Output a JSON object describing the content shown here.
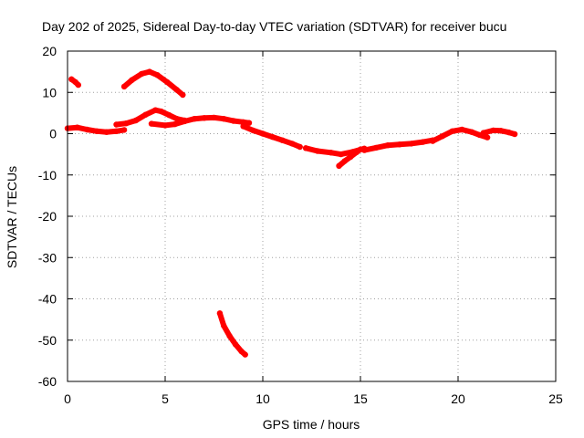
{
  "chart_data": {
    "type": "scatter",
    "title": "Day 202 of 2025, Sidereal Day-to-day VTEC variation (SDTVAR) for receiver bucu",
    "xlabel": "GPS time / hours",
    "ylabel": "SDTVAR / TECUs",
    "xlim": [
      0,
      25
    ],
    "ylim": [
      -60,
      20
    ],
    "xticks": [
      0,
      5,
      10,
      15,
      20,
      25
    ],
    "yticks": [
      -60,
      -50,
      -40,
      -30,
      -20,
      -10,
      0,
      10,
      20
    ],
    "grid": true,
    "series_color": "#ff0000",
    "series": [
      {
        "name": "arc-early-high",
        "points": [
          [
            0.2,
            13.2
          ],
          [
            0.4,
            12.5
          ],
          [
            0.55,
            11.8
          ]
        ]
      },
      {
        "name": "arc-hump",
        "points": [
          [
            2.9,
            11.4
          ],
          [
            3.3,
            13.0
          ],
          [
            3.8,
            14.5
          ],
          [
            4.2,
            15.0
          ],
          [
            4.6,
            14.2
          ],
          [
            5.1,
            12.5
          ],
          [
            5.6,
            10.6
          ],
          [
            5.9,
            9.4
          ]
        ]
      },
      {
        "name": "arc-baseline-left",
        "points": [
          [
            0.0,
            1.3
          ],
          [
            0.5,
            1.5
          ],
          [
            1.0,
            1.0
          ],
          [
            1.5,
            0.6
          ],
          [
            2.0,
            0.4
          ],
          [
            2.5,
            0.6
          ],
          [
            2.9,
            0.9
          ]
        ]
      },
      {
        "name": "arc-rise-mid",
        "points": [
          [
            2.5,
            2.2
          ],
          [
            3.0,
            2.5
          ],
          [
            3.5,
            3.2
          ],
          [
            4.0,
            4.6
          ],
          [
            4.5,
            5.7
          ],
          [
            4.8,
            5.4
          ],
          [
            5.2,
            4.5
          ],
          [
            5.6,
            3.6
          ],
          [
            6.0,
            3.2
          ]
        ]
      },
      {
        "name": "arc-mid-block",
        "points": [
          [
            4.3,
            2.4
          ],
          [
            5.0,
            2.0
          ],
          [
            5.5,
            2.3
          ],
          [
            6.0,
            3.0
          ],
          [
            6.5,
            3.6
          ],
          [
            7.0,
            3.8
          ],
          [
            7.5,
            3.9
          ],
          [
            8.0,
            3.6
          ],
          [
            8.5,
            3.1
          ],
          [
            9.0,
            2.8
          ],
          [
            9.3,
            2.6
          ]
        ]
      },
      {
        "name": "arc-decline",
        "points": [
          [
            9.0,
            1.8
          ],
          [
            9.5,
            0.8
          ],
          [
            10.0,
            0.0
          ],
          [
            10.5,
            -0.8
          ],
          [
            11.0,
            -1.6
          ],
          [
            11.5,
            -2.4
          ],
          [
            11.9,
            -3.2
          ]
        ]
      },
      {
        "name": "arc-trough",
        "points": [
          [
            12.2,
            -3.5
          ],
          [
            12.8,
            -4.2
          ],
          [
            13.5,
            -4.6
          ],
          [
            14.0,
            -5.0
          ],
          [
            14.6,
            -4.4
          ],
          [
            15.2,
            -3.6
          ]
        ]
      },
      {
        "name": "arc-dip-spike",
        "points": [
          [
            13.9,
            -7.8
          ],
          [
            14.2,
            -6.6
          ],
          [
            14.5,
            -5.6
          ],
          [
            14.8,
            -4.5
          ],
          [
            15.0,
            -3.8
          ]
        ]
      },
      {
        "name": "arc-recovery",
        "points": [
          [
            15.2,
            -4.0
          ],
          [
            15.8,
            -3.4
          ],
          [
            16.4,
            -2.8
          ],
          [
            17.0,
            -2.6
          ],
          [
            17.6,
            -2.4
          ],
          [
            18.2,
            -2.0
          ],
          [
            18.7,
            -1.6
          ]
        ]
      },
      {
        "name": "arc-right",
        "points": [
          [
            18.7,
            -1.8
          ],
          [
            19.2,
            -0.6
          ],
          [
            19.7,
            0.6
          ],
          [
            20.2,
            1.0
          ],
          [
            20.7,
            0.4
          ],
          [
            21.1,
            -0.3
          ],
          [
            21.5,
            -0.9
          ]
        ]
      },
      {
        "name": "arc-right-end",
        "points": [
          [
            21.3,
            0.2
          ],
          [
            21.8,
            0.8
          ],
          [
            22.2,
            0.7
          ],
          [
            22.6,
            0.3
          ],
          [
            22.9,
            -0.1
          ]
        ]
      },
      {
        "name": "arc-deep-negative",
        "points": [
          [
            7.8,
            -43.5
          ],
          [
            8.0,
            -46.5
          ],
          [
            8.3,
            -49.0
          ],
          [
            8.6,
            -51.0
          ],
          [
            8.9,
            -52.7
          ],
          [
            9.1,
            -53.5
          ]
        ]
      }
    ]
  }
}
